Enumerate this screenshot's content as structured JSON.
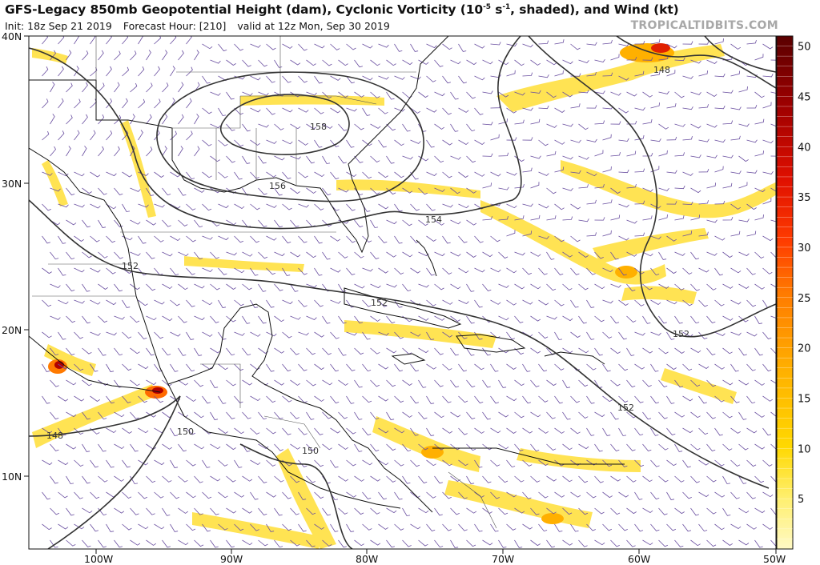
{
  "header": {
    "title_part1": "GFS-Legacy 850mb Geopotential Height (dam), Cyclonic Vorticity (10",
    "title_sup": "-5",
    "title_part2": " s",
    "title_sup2": "-1",
    "title_part3": ", shaded), and Wind (kt)",
    "init": "Init: 18z Sep 21 2019",
    "forecast_hour": "Forecast Hour: [210]",
    "valid": "valid at 12z Mon, Sep 30 2019",
    "brand": "TROPICALTIDBITS.COM"
  },
  "axes": {
    "lat_labels": [
      "40N",
      "30N",
      "20N",
      "10N"
    ],
    "lon_labels": [
      "100W",
      "90W",
      "80W",
      "70W",
      "60W",
      "50W"
    ]
  },
  "colorbar": {
    "ticks": [
      "50",
      "45",
      "40",
      "35",
      "30",
      "25",
      "20",
      "15",
      "10",
      "5"
    ],
    "min": 0,
    "max": 51,
    "colors": [
      "#fff9c4",
      "#ffef6e",
      "#ffe100",
      "#ffd000",
      "#ffb300",
      "#ff8a00",
      "#ff5a00",
      "#ef2500",
      "#c80000",
      "#8a0000",
      "#5a0000"
    ]
  },
  "contours": {
    "labels": [
      "158",
      "156",
      "154",
      "152",
      "152",
      "152",
      "152",
      "150",
      "150",
      "148",
      "148"
    ]
  },
  "icons": {
    "wind_barb": "wind-barb-icon"
  }
}
